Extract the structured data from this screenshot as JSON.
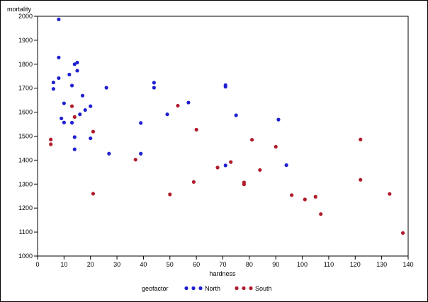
{
  "chart_data": {
    "type": "scatter",
    "ylabel": "mortality",
    "xlabel": "hardness",
    "xlim": [
      0,
      140
    ],
    "ylim": [
      1000,
      2000
    ],
    "xticks": [
      0,
      10,
      20,
      30,
      40,
      50,
      60,
      70,
      80,
      90,
      100,
      110,
      120,
      130,
      140
    ],
    "yticks": [
      1000,
      1100,
      1200,
      1300,
      1400,
      1500,
      1600,
      1700,
      1800,
      1900,
      2000
    ],
    "grid": false,
    "legend": {
      "title": "geofactor",
      "placement": "bottom",
      "entries": [
        "North",
        "South"
      ]
    },
    "series": [
      {
        "name": "North",
        "color": "#2020d0",
        "points": [
          [
            8,
            1987
          ],
          [
            8,
            1828
          ],
          [
            14,
            1800
          ],
          [
            15,
            1807
          ],
          [
            15,
            1773
          ],
          [
            12,
            1757
          ],
          [
            8,
            1742
          ],
          [
            6,
            1724
          ],
          [
            13,
            1711
          ],
          [
            6,
            1697
          ],
          [
            17,
            1669
          ],
          [
            10,
            1637
          ],
          [
            20,
            1625
          ],
          [
            18,
            1609
          ],
          [
            16,
            1591
          ],
          [
            9,
            1574
          ],
          [
            10,
            1557
          ],
          [
            13,
            1556
          ],
          [
            14,
            1496
          ],
          [
            14,
            1445
          ],
          [
            20,
            1491
          ],
          [
            26,
            1702
          ],
          [
            27,
            1427
          ],
          [
            39,
            1555
          ],
          [
            39,
            1427
          ],
          [
            44,
            1723
          ],
          [
            44,
            1702
          ],
          [
            49,
            1591
          ],
          [
            57,
            1640
          ],
          [
            71,
            1713
          ],
          [
            71,
            1706
          ],
          [
            71,
            1378
          ],
          [
            75,
            1587
          ],
          [
            91,
            1569
          ],
          [
            94,
            1379
          ]
        ]
      },
      {
        "name": "South",
        "color": "#b01c2c",
        "points": [
          [
            5,
            1486
          ],
          [
            5,
            1466
          ],
          [
            13,
            1625
          ],
          [
            14,
            1580
          ],
          [
            21,
            1519
          ],
          [
            21,
            1260
          ],
          [
            37,
            1402
          ],
          [
            50,
            1257
          ],
          [
            53,
            1627
          ],
          [
            59,
            1309
          ],
          [
            60,
            1527
          ],
          [
            68,
            1369
          ],
          [
            73,
            1392
          ],
          [
            78,
            1307
          ],
          [
            78,
            1299
          ],
          [
            81,
            1485
          ],
          [
            84,
            1359
          ],
          [
            90,
            1456
          ],
          [
            96,
            1254
          ],
          [
            101,
            1236
          ],
          [
            105,
            1247
          ],
          [
            107,
            1175
          ],
          [
            122,
            1486
          ],
          [
            122,
            1318
          ],
          [
            133,
            1259
          ],
          [
            138,
            1096
          ]
        ]
      }
    ]
  }
}
